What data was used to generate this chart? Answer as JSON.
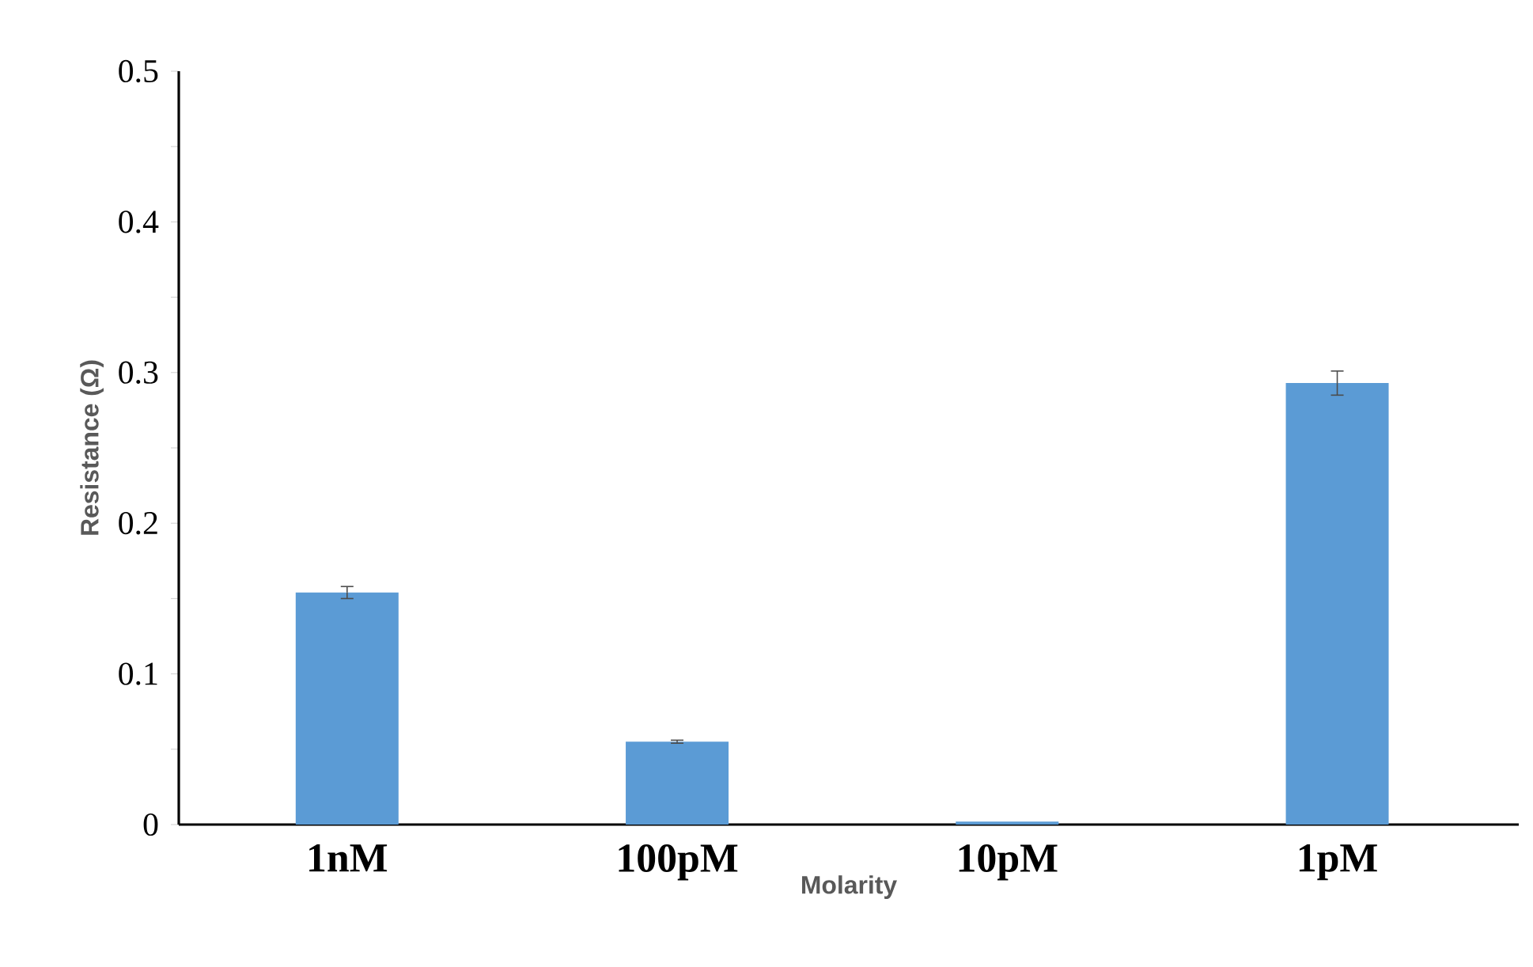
{
  "chart_data": {
    "type": "bar",
    "xlabel": "Molarity",
    "ylabel": "Resistance (Ω)",
    "categories": [
      "1nM",
      "100pM",
      "10pM",
      "1pM"
    ],
    "values": [
      0.154,
      0.055,
      0.002,
      0.293
    ],
    "errors": [
      0.004,
      0.001,
      null,
      0.008
    ],
    "color": "#5b9bd5",
    "ylim": [
      0,
      0.5
    ],
    "yticks": [
      0,
      {
        "value": 0.05,
        "label": null
      },
      0.1,
      {
        "value": 0.15,
        "label": null
      },
      0.2,
      {
        "value": 0.25,
        "label": null
      },
      0.3,
      {
        "value": 0.35,
        "label": null
      },
      0.4,
      {
        "value": 0.45,
        "label": null
      },
      0.5
    ],
    "grid": false
  }
}
